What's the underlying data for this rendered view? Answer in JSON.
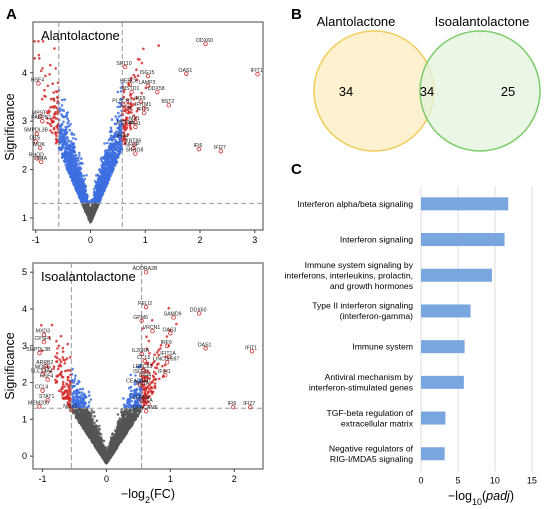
{
  "panels": {
    "A": "A",
    "B": "B",
    "C": "C"
  },
  "chart_data": [
    {
      "type": "scatter",
      "title": "Alantolactone",
      "xlabel": "",
      "ylabel": "Significance",
      "xlim": [
        -1.05,
        3.15
      ],
      "ylim": [
        0.75,
        5.05
      ],
      "xticks": [
        -1,
        0,
        1,
        2,
        3
      ],
      "yticks": [
        1,
        2,
        3,
        4
      ],
      "x_thresholds": [
        -0.58,
        0.58
      ],
      "y_threshold": 1.3,
      "colors": {
        "grey": "#555555",
        "blue": "#3d6fe0",
        "red": "#d42b2b",
        "green": "#2aa02a"
      },
      "labels": [
        {
          "text": "DDX60",
          "x": 2.1,
          "y": 4.6
        },
        {
          "text": "SP110",
          "x": 0.63,
          "y": 4.12
        },
        {
          "text": "ISG15",
          "x": 1.05,
          "y": 3.93
        },
        {
          "text": "OAS1",
          "x": 1.75,
          "y": 3.98
        },
        {
          "text": "IFIT1",
          "x": 3.05,
          "y": 3.97
        },
        {
          "text": "HSF4",
          "x": -0.95,
          "y": 3.78
        },
        {
          "text": "HERC6",
          "x": 0.72,
          "y": 3.76
        },
        {
          "text": "LAMP3",
          "x": 1.05,
          "y": 3.73
        },
        {
          "text": "MSTD1",
          "x": 0.75,
          "y": 3.6
        },
        {
          "text": "DDX58",
          "x": 1.22,
          "y": 3.6
        },
        {
          "text": "IRF9",
          "x": 0.92,
          "y": 3.4
        },
        {
          "text": "PLSCR1",
          "x": 0.6,
          "y": 3.34
        },
        {
          "text": "BST2",
          "x": 1.43,
          "y": 3.33
        },
        {
          "text": "IFITM1",
          "x": 0.98,
          "y": 3.27
        },
        {
          "text": "TTN",
          "x": 0.67,
          "y": 3.2
        },
        {
          "text": "IFIT5",
          "x": 0.98,
          "y": 3.17
        },
        {
          "text": "MX1",
          "x": 0.82,
          "y": 2.98
        },
        {
          "text": "MPST",
          "x": -0.92,
          "y": 3.1
        },
        {
          "text": "PABPN1",
          "x": -0.88,
          "y": 3.0
        },
        {
          "text": "UCP18",
          "x": 0.65,
          "y": 2.9
        },
        {
          "text": "IFIH1",
          "x": 0.82,
          "y": 2.88
        },
        {
          "text": "SMPDL3B",
          "x": -0.98,
          "y": 2.74
        },
        {
          "text": "IFI44",
          "x": 0.6,
          "y": 2.62
        },
        {
          "text": "CBS",
          "x": -1.0,
          "y": 2.58
        },
        {
          "text": "KRT86",
          "x": 0.8,
          "y": 2.52
        },
        {
          "text": "MOK",
          "x": -0.92,
          "y": 2.45
        },
        {
          "text": "NFBP",
          "x": 0.78,
          "y": 2.44
        },
        {
          "text": "IFI6",
          "x": 1.98,
          "y": 2.42
        },
        {
          "text": "IFI27",
          "x": 2.38,
          "y": 2.38
        },
        {
          "text": "SNHG8",
          "x": 0.82,
          "y": 2.33
        },
        {
          "text": "RHOD",
          "x": -0.97,
          "y": 2.23
        },
        {
          "text": "TM4A",
          "x": -0.9,
          "y": 2.16
        }
      ]
    },
    {
      "type": "scatter",
      "title": "Isoalantolactone",
      "xlabel": "−log2(FC)",
      "ylabel": "Significance",
      "xlim": [
        -1.15,
        2.45
      ],
      "ylim": [
        -0.35,
        5.25
      ],
      "xticks": [
        -1,
        0,
        1,
        2
      ],
      "yticks": [
        0,
        1,
        2,
        3,
        4,
        5
      ],
      "x_thresholds": [
        -0.55,
        0.55
      ],
      "y_threshold": 1.3,
      "colors": {
        "grey": "#555555",
        "blue": "#3d6fe0",
        "red": "#d42b2b",
        "green": "#2aa02a"
      },
      "labels": [
        {
          "text": "ADORA2B",
          "x": 0.62,
          "y": 5.0
        },
        {
          "text": "PELI2",
          "x": 0.62,
          "y": 4.05
        },
        {
          "text": "SAMD9",
          "x": 1.05,
          "y": 3.77
        },
        {
          "text": "DDX60",
          "x": 1.45,
          "y": 3.88
        },
        {
          "text": "GPM6",
          "x": 0.55,
          "y": 3.68
        },
        {
          "text": "MXD3",
          "x": -0.98,
          "y": 3.3
        },
        {
          "text": "VRCN1",
          "x": 0.72,
          "y": 3.4
        },
        {
          "text": "OAS3",
          "x": 1.0,
          "y": 3.34
        },
        {
          "text": "CPSF1",
          "x": -0.98,
          "y": 3.1
        },
        {
          "text": "IRF9",
          "x": 0.95,
          "y": 3.0
        },
        {
          "text": "IL20RA",
          "x": 0.55,
          "y": 2.78
        },
        {
          "text": "OAS1",
          "x": 1.55,
          "y": 2.93
        },
        {
          "text": "SMPDL3B",
          "x": -1.05,
          "y": 2.8
        },
        {
          "text": "IFIT1A",
          "x": 0.98,
          "y": 2.7
        },
        {
          "text": "CCL5",
          "x": 0.6,
          "y": 2.58
        },
        {
          "text": "LINC00597",
          "x": 0.95,
          "y": 2.55
        },
        {
          "text": "IFIT1",
          "x": 2.28,
          "y": 2.85
        },
        {
          "text": "ARRB2",
          "x": -0.95,
          "y": 2.45
        },
        {
          "text": "MORG",
          "x": -0.98,
          "y": 2.33
        },
        {
          "text": "LRRC63",
          "x": 0.58,
          "y": 2.34
        },
        {
          "text": "SLC13A4",
          "x": -1.0,
          "y": 2.22
        },
        {
          "text": "ISG20",
          "x": 0.55,
          "y": 2.2
        },
        {
          "text": "IFIH1",
          "x": 0.92,
          "y": 2.2
        },
        {
          "text": "HSF4",
          "x": -0.92,
          "y": 2.08
        },
        {
          "text": "IFI44",
          "x": 0.62,
          "y": 2.1
        },
        {
          "text": "CEACAM7",
          "x": 0.52,
          "y": 1.95
        },
        {
          "text": "GSTA",
          "x": 0.58,
          "y": 1.88
        },
        {
          "text": "CCL4",
          "x": -1.0,
          "y": 1.78
        },
        {
          "text": "CENP4",
          "x": 0.55,
          "y": 1.5
        },
        {
          "text": "STAT1",
          "x": -0.92,
          "y": 1.52
        },
        {
          "text": "C1A",
          "x": 0.66,
          "y": 1.42
        },
        {
          "text": "MEM200",
          "x": -1.05,
          "y": 1.35
        },
        {
          "text": "NOX3",
          "x": -0.55,
          "y": 1.25
        },
        {
          "text": "CEACAM6",
          "x": 0.62,
          "y": 1.22
        },
        {
          "text": "IFI6",
          "x": 1.98,
          "y": 1.33
        },
        {
          "text": "IFI27",
          "x": 2.25,
          "y": 1.33
        }
      ]
    },
    {
      "type": "venn",
      "sets": [
        {
          "name": "Alantolactone",
          "only": 34,
          "color": "#f2cd5c",
          "fill": "#fdf1cf"
        },
        {
          "name": "Isoalantolactone",
          "only": 25,
          "color": "#7ccc6a",
          "fill": "#e3f3dd"
        }
      ],
      "intersection": 34,
      "intersection_fill": "#eef0cf"
    },
    {
      "type": "bar",
      "orientation": "horizontal",
      "xlabel": "−log10(padj)",
      "xlim": [
        0,
        16.5
      ],
      "xticks": [
        0,
        5,
        10,
        15
      ],
      "bar_color": "#7aa6e0",
      "categories": [
        "Interferon alpha/beta signaling",
        "Interferon signaling",
        "Immune system signaling by interferons, interleukins, prolactin, and growth hormones",
        "Type II interferon signaling (interferon-gamma)",
        "Immune system",
        "Antiviral mechanism by interferon-stimulated genes",
        "TGF-beta regulation of extracellular matrix",
        "Negative regulators of RIG-I/MDA5 signaling"
      ],
      "category_lines": [
        [
          "Interferon alpha/beta signaling"
        ],
        [
          "Interferon signaling"
        ],
        [
          "Immune system signaling by",
          "interferons, interleukins, prolactin,",
          "and growth hormones"
        ],
        [
          "Type II interferon signaling",
          "(interferon-gamma)"
        ],
        [
          "Immune system"
        ],
        [
          "Antiviral mechanism by",
          "interferon-stimulated genes"
        ],
        [
          "TGF-beta regulation of",
          "extracellular matrix"
        ],
        [
          "Negative regulators of",
          "RIG-I/MDA5 signaling"
        ]
      ],
      "values": [
        11.8,
        11.3,
        9.6,
        6.7,
        5.9,
        5.8,
        3.3,
        3.2
      ]
    }
  ]
}
